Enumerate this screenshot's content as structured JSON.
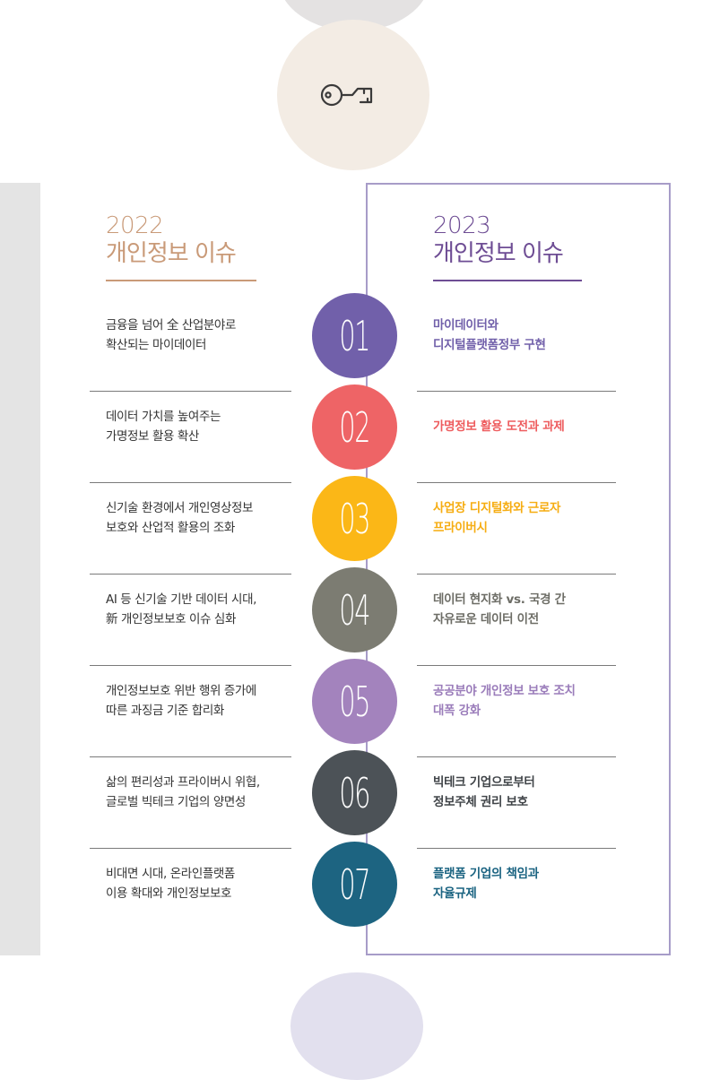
{
  "header_2022": {
    "year": "2022",
    "title": "개인정보 이슈",
    "color": "#c99a78"
  },
  "header_2023": {
    "year": "2023",
    "title": "개인정보 이슈",
    "color": "#6e4d94"
  },
  "icon": "key-icon",
  "rows": [
    {
      "number": "01",
      "color": "#7160aa",
      "issue_2022": [
        "금융을 넘어 全 산업분야로",
        "확산되는 마이데이터"
      ],
      "issue_2023": [
        "마이데이터와",
        "디지털플랫폼정부 구현"
      ],
      "text_color": "#7160aa"
    },
    {
      "number": "02",
      "color": "#ee6466",
      "issue_2022": [
        "데이터 가치를 높여주는",
        "가명정보 활용 확산"
      ],
      "issue_2023": [
        "가명정보 활용 도전과 과제"
      ],
      "text_color": "#ee5c5e"
    },
    {
      "number": "03",
      "color": "#fbb717",
      "issue_2022": [
        "신기술 환경에서 개인영상정보",
        "보호와 산업적 활용의 조화"
      ],
      "issue_2023": [
        "사업장 디지털화와 근로자",
        "프라이버시"
      ],
      "text_color": "#f6ad12"
    },
    {
      "number": "04",
      "color": "#7c7c72",
      "issue_2022": [
        "AI 등 신기술 기반 데이터 시대,",
        "新 개인정보보호 이슈 심화"
      ],
      "issue_2023": [
        "데이터 현지화 vs. 국경 간",
        "자유로운 데이터 이전"
      ],
      "text_color": "#6d6d66"
    },
    {
      "number": "05",
      "color": "#a383bd",
      "issue_2022": [
        "개인정보보호 위반 행위 증가에",
        "따른 과징금 기준 합리화"
      ],
      "issue_2023": [
        "공공분야 개인정보 보호 조치",
        "대폭 강화"
      ],
      "text_color": "#9a7cba"
    },
    {
      "number": "06",
      "color": "#4c5257",
      "issue_2022": [
        "삶의 편리성과 프라이버시 위협,",
        "글로벌 빅테크 기업의 양면성"
      ],
      "issue_2023": [
        "빅테크 기업으로부터",
        "정보주체 권리 보호"
      ],
      "text_color": "#404448"
    },
    {
      "number": "07",
      "color": "#1d6481",
      "issue_2022": [
        "비대면 시대, 온라인플랫폼",
        "이용 확대와 개인정보보호"
      ],
      "issue_2023": [
        "플랫폼 기업의 책임과",
        "자율규제"
      ],
      "text_color": "#1a6381"
    }
  ]
}
